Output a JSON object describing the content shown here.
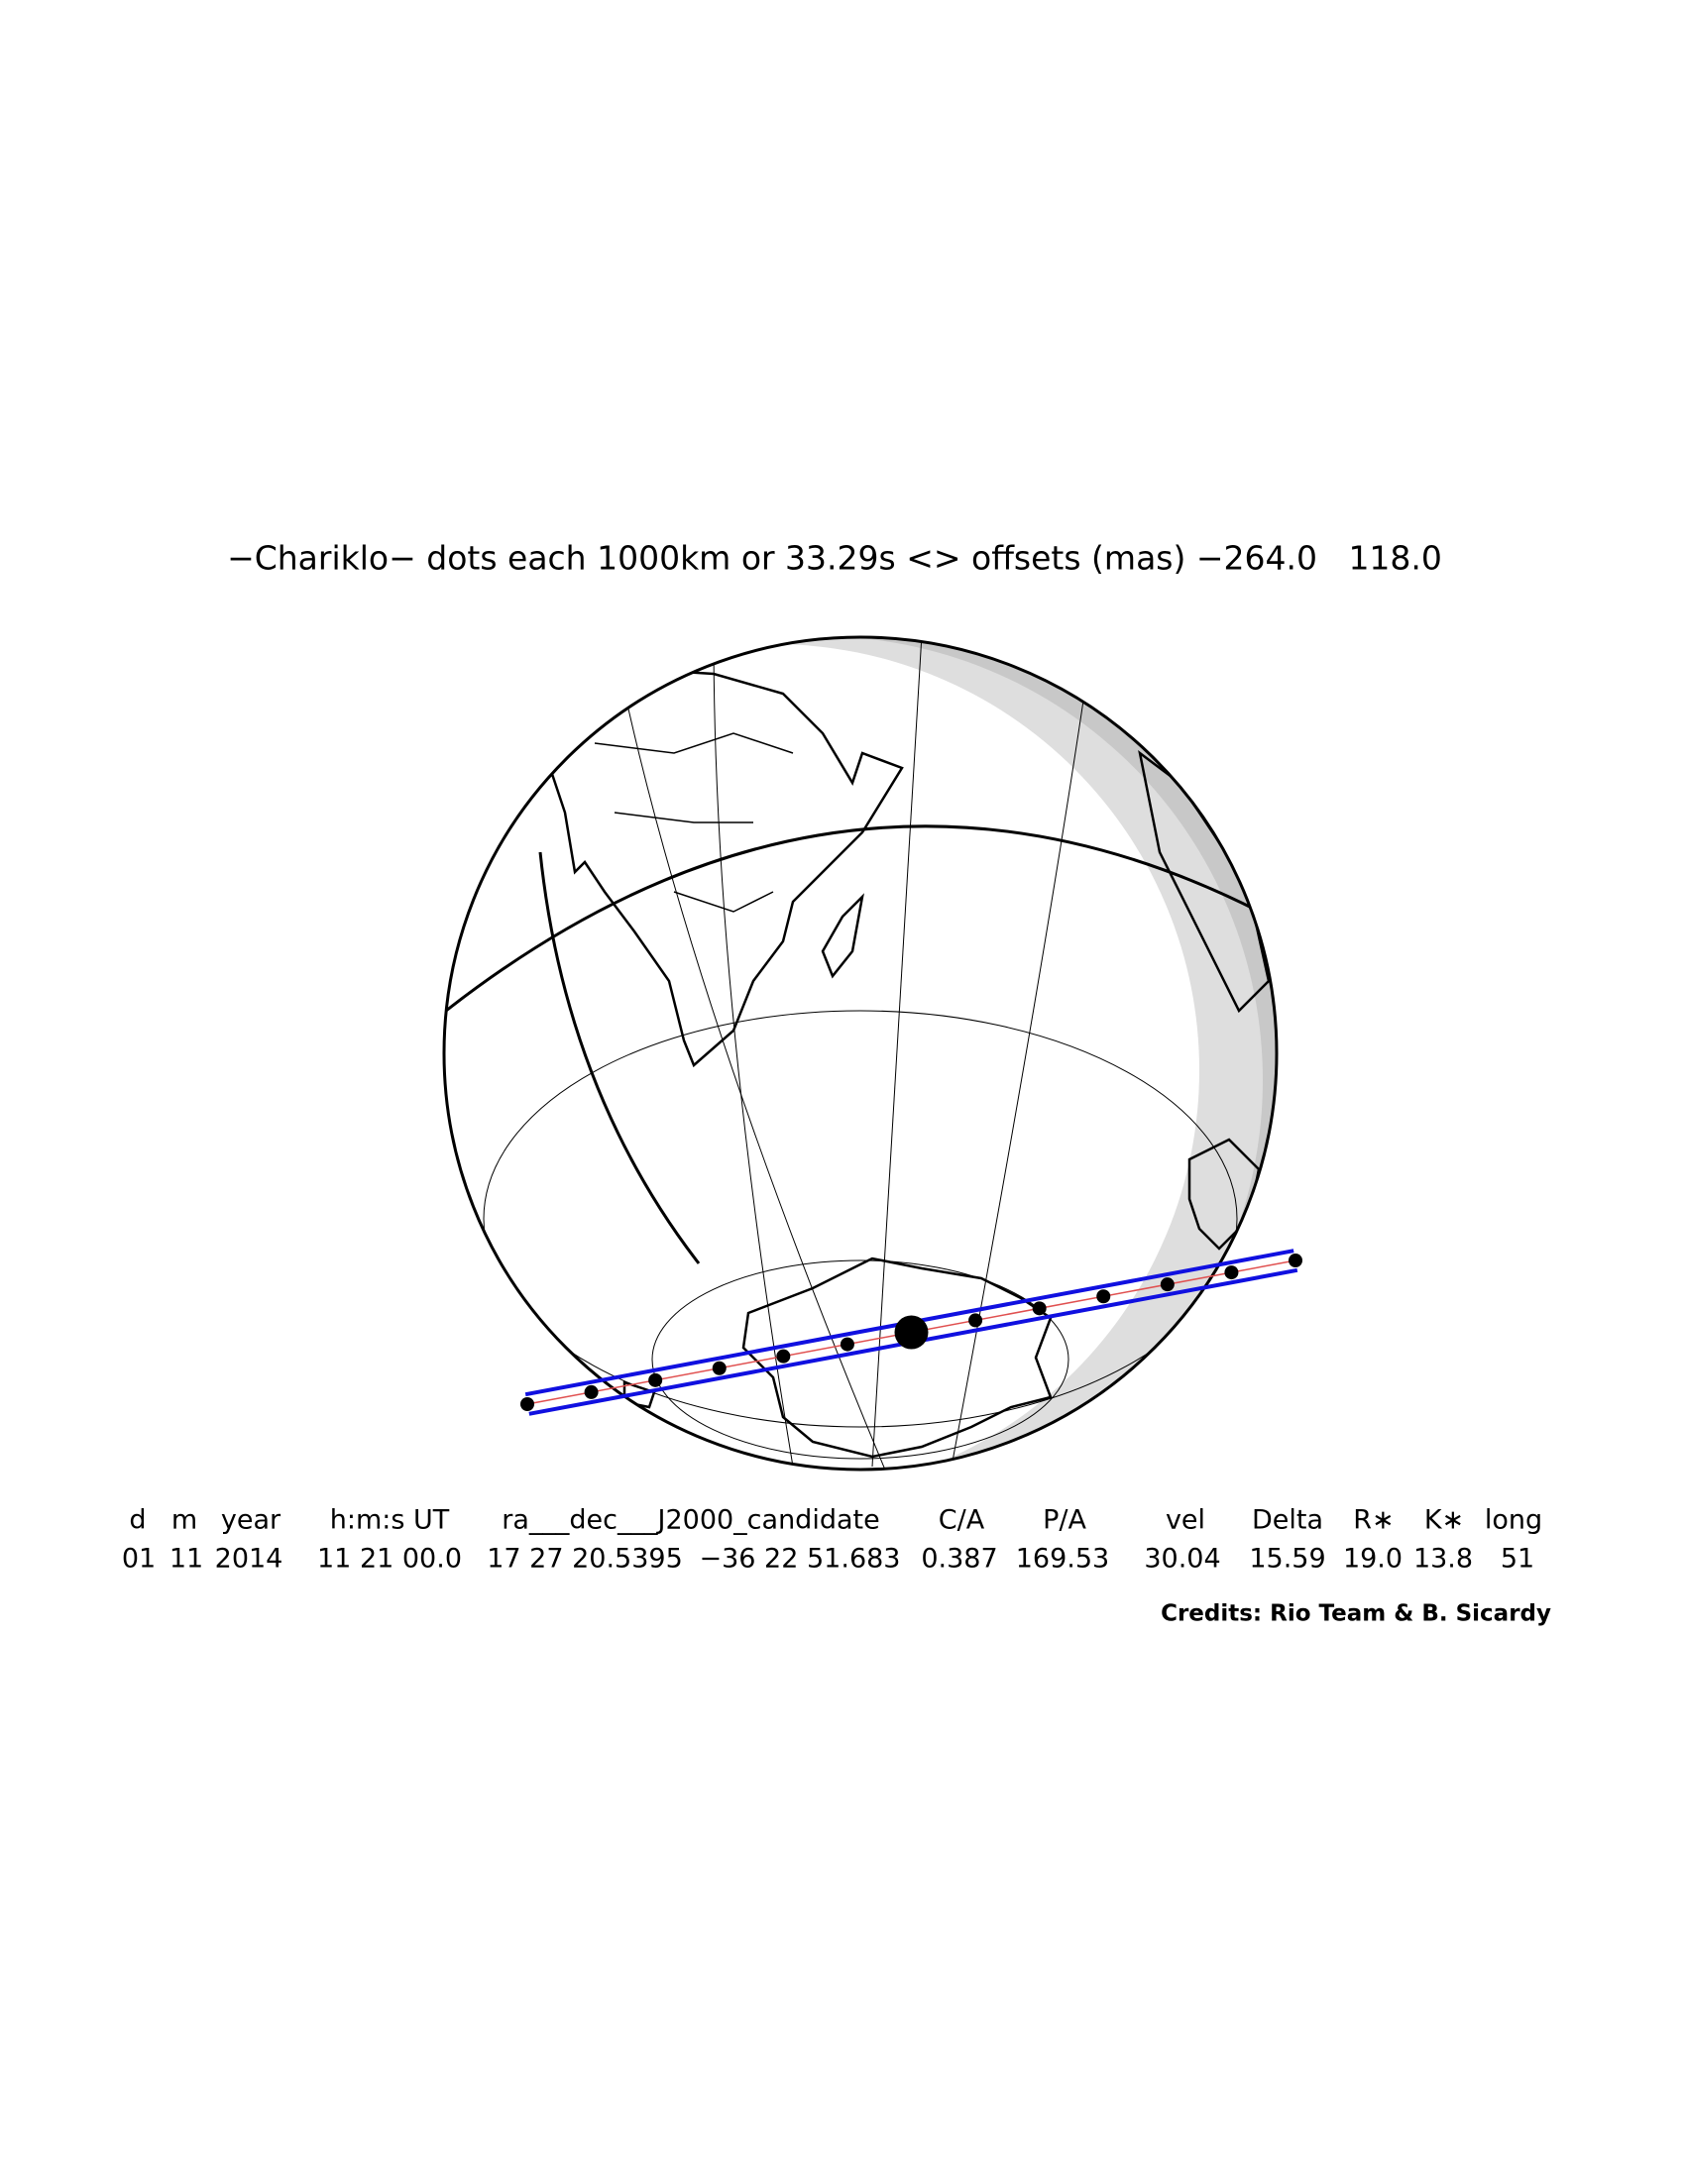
{
  "title": "−Chariklo− dots each 1000km or 33.29s <> offsets (mas) −264.0   118.0",
  "table": {
    "headers": [
      "d",
      "m",
      "year",
      "h:m:s UT",
      "ra___dec___J2000_candidate",
      "C/A",
      "P/A",
      "vel",
      "Delta",
      "R∗",
      "K∗",
      "long"
    ],
    "rows": [
      [
        "01",
        "11",
        "2014",
        "11 21 00.0",
        "17 27 20.5395",
        "−36 22 51.683",
        "0.387",
        "169.53",
        "30.04",
        "15.59",
        "19.0",
        "13.8",
        "51"
      ]
    ]
  },
  "credits": "Credits: Rio Team & B. Sicardy"
}
